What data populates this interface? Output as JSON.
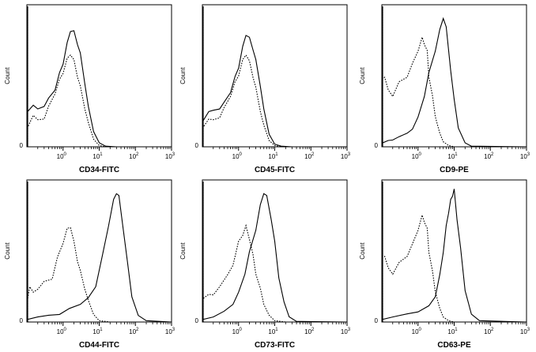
{
  "chart_data": [
    {
      "type": "line",
      "title": "",
      "xlabel": "CD34-FITC",
      "ylabel": "Count",
      "xscale": "log",
      "xticks": [
        "10",
        "10",
        "10",
        "10"
      ],
      "xtick_exponents": [
        "0",
        "1",
        "2",
        "3"
      ],
      "ytick": "0",
      "xlim": [
        0.1,
        1000
      ],
      "ylim": [
        0,
        100
      ],
      "series": [
        {
          "style": "solid",
          "x": [
            0.1,
            0.15,
            0.2,
            0.3,
            0.4,
            0.6,
            0.8,
            1.0,
            1.3,
            1.6,
            2.0,
            2.5,
            3.0,
            4.0,
            5.0,
            7.0,
            10,
            15,
            30,
            1000
          ],
          "y": [
            27,
            33,
            28,
            32,
            36,
            45,
            55,
            65,
            78,
            90,
            87,
            80,
            70,
            50,
            30,
            12,
            3,
            0.5,
            0,
            0
          ]
        },
        {
          "style": "dotted",
          "x": [
            0.1,
            0.15,
            0.2,
            0.3,
            0.4,
            0.6,
            0.8,
            1.0,
            1.3,
            1.6,
            2.0,
            2.5,
            3.0,
            4.0,
            5.0,
            7.0,
            10,
            15,
            30,
            1000
          ],
          "y": [
            15,
            25,
            20,
            22,
            30,
            42,
            50,
            58,
            66,
            72,
            65,
            55,
            45,
            30,
            18,
            6,
            1,
            0,
            0,
            0
          ]
        }
      ]
    },
    {
      "type": "line",
      "title": "",
      "xlabel": "CD45-FITC",
      "ylabel": "Count",
      "xscale": "log",
      "xticks": [
        "10",
        "10",
        "10",
        "10"
      ],
      "xtick_exponents": [
        "0",
        "1",
        "2",
        "3"
      ],
      "ytick": "0",
      "xlim": [
        0.1,
        1000
      ],
      "ylim": [
        0,
        100
      ],
      "series": [
        {
          "style": "solid",
          "x": [
            0.1,
            0.15,
            0.2,
            0.3,
            0.4,
            0.6,
            0.8,
            1.0,
            1.3,
            1.6,
            2.0,
            2.5,
            3.0,
            4.0,
            5.0,
            7.0,
            10,
            15,
            30,
            1000
          ],
          "y": [
            20,
            28,
            27,
            30,
            33,
            43,
            52,
            62,
            75,
            87,
            82,
            76,
            65,
            48,
            28,
            10,
            2,
            0.5,
            0,
            0
          ]
        },
        {
          "style": "dotted",
          "x": [
            0.1,
            0.15,
            0.2,
            0.3,
            0.4,
            0.6,
            0.8,
            1.0,
            1.3,
            1.6,
            2.0,
            2.5,
            3.0,
            4.0,
            5.0,
            7.0,
            10,
            15,
            30,
            1000
          ],
          "y": [
            15,
            22,
            20,
            23,
            29,
            40,
            48,
            56,
            65,
            72,
            64,
            55,
            44,
            28,
            16,
            5,
            1,
            0,
            0,
            0
          ]
        }
      ]
    },
    {
      "type": "line",
      "title": "",
      "xlabel": "CD9-PE",
      "ylabel": "Count",
      "xscale": "log",
      "xticks": [
        "10",
        "10",
        "10",
        "10"
      ],
      "xtick_exponents": [
        "0",
        "1",
        "2",
        "3"
      ],
      "ytick": "0",
      "xlim": [
        0.1,
        1000
      ],
      "ylim": [
        0,
        100
      ],
      "series": [
        {
          "style": "solid",
          "x": [
            0.1,
            0.15,
            0.2,
            0.3,
            0.5,
            0.7,
            1.0,
            1.5,
            2.0,
            3.0,
            4.0,
            5.0,
            6.0,
            8.0,
            10,
            13,
            20,
            30,
            1000
          ],
          "y": [
            3,
            5,
            5,
            8,
            10,
            14,
            22,
            40,
            55,
            75,
            88,
            100,
            90,
            60,
            35,
            15,
            3,
            0.5,
            0
          ]
        },
        {
          "style": "dotted",
          "x": [
            0.1,
            0.12,
            0.15,
            0.2,
            0.3,
            0.5,
            0.7,
            1.0,
            1.3,
            1.5,
            1.8,
            2.0,
            2.5,
            3.0,
            4.0,
            5.0,
            7.0,
            10,
            20,
            1000
          ],
          "y": [
            52,
            55,
            42,
            40,
            48,
            55,
            62,
            75,
            82,
            80,
            72,
            55,
            38,
            24,
            10,
            4,
            1,
            0,
            0,
            0
          ]
        }
      ]
    },
    {
      "type": "line",
      "title": "",
      "xlabel": "CD44-FITC",
      "ylabel": "Count",
      "xscale": "log",
      "xticks": [
        "10",
        "10",
        "10",
        "10"
      ],
      "xtick_exponents": [
        "0",
        "1",
        "2",
        "3"
      ],
      "ytick": "0",
      "xlim": [
        0.1,
        1000
      ],
      "ylim": [
        0,
        100
      ],
      "series": [
        {
          "style": "solid",
          "x": [
            0.1,
            0.2,
            0.4,
            0.8,
            1.5,
            3.0,
            5.0,
            8.0,
            12,
            18,
            25,
            30,
            35,
            45,
            60,
            80,
            120,
            200,
            1000
          ],
          "y": [
            2,
            4,
            5,
            6,
            10,
            14,
            18,
            28,
            48,
            75,
            92,
            100,
            95,
            75,
            45,
            20,
            5,
            1,
            0
          ]
        },
        {
          "style": "dotted",
          "x": [
            0.1,
            0.12,
            0.15,
            0.2,
            0.3,
            0.5,
            0.7,
            1.0,
            1.3,
            1.6,
            2.0,
            2.5,
            3.0,
            4.0,
            5.0,
            7.0,
            10,
            20,
            1000
          ],
          "y": [
            18,
            28,
            22,
            26,
            30,
            34,
            48,
            62,
            70,
            74,
            60,
            48,
            38,
            26,
            16,
            6,
            1,
            0,
            0
          ]
        }
      ]
    },
    {
      "type": "line",
      "title": "",
      "xlabel": "CD73-FITC",
      "ylabel": "Count",
      "xscale": "log",
      "xticks": [
        "10",
        "10",
        "10",
        "10"
      ],
      "xtick_exponents": [
        "0",
        "1",
        "2",
        "3"
      ],
      "ytick": "0",
      "xlim": [
        0.1,
        1000
      ],
      "ylim": [
        0,
        100
      ],
      "series": [
        {
          "style": "solid",
          "x": [
            0.1,
            0.2,
            0.4,
            0.7,
            1.0,
            1.5,
            2.0,
            3.0,
            4.0,
            5.0,
            6.0,
            8.0,
            10,
            13,
            18,
            25,
            40,
            1000
          ],
          "y": [
            2,
            4,
            8,
            14,
            22,
            38,
            52,
            72,
            88,
            100,
            95,
            80,
            60,
            35,
            15,
            4,
            0.5,
            0
          ]
        },
        {
          "style": "dotted",
          "x": [
            0.1,
            0.15,
            0.2,
            0.3,
            0.5,
            0.7,
            1.0,
            1.3,
            1.6,
            2.0,
            2.5,
            3.0,
            4.0,
            5.0,
            7.0,
            10,
            20,
            1000
          ],
          "y": [
            18,
            22,
            20,
            28,
            35,
            45,
            60,
            68,
            72,
            65,
            50,
            38,
            25,
            14,
            5,
            1,
            0,
            0
          ]
        }
      ]
    },
    {
      "type": "line",
      "title": "",
      "xlabel": "CD63-PE",
      "ylabel": "Count",
      "xscale": "log",
      "xticks": [
        "10",
        "10",
        "10",
        "10"
      ],
      "xtick_exponents": [
        "0",
        "1",
        "2",
        "3"
      ],
      "ytick": "0",
      "xlim": [
        0.1,
        1000
      ],
      "ylim": [
        0,
        100
      ],
      "series": [
        {
          "style": "solid",
          "x": [
            0.1,
            0.2,
            0.5,
            1.0,
            2.0,
            3.0,
            4.0,
            5.0,
            6.0,
            7.0,
            8.0,
            9.0,
            10,
            12,
            15,
            20,
            30,
            50,
            1000
          ],
          "y": [
            2,
            4,
            6,
            8,
            12,
            20,
            35,
            55,
            72,
            85,
            92,
            98,
            100,
            80,
            55,
            25,
            6,
            1,
            0
          ]
        },
        {
          "style": "dotted",
          "x": [
            0.1,
            0.12,
            0.15,
            0.2,
            0.3,
            0.5,
            0.7,
            1.0,
            1.3,
            1.5,
            1.8,
            2.0,
            2.5,
            3.0,
            4.0,
            5.0,
            7.0,
            10,
            20,
            1000
          ],
          "y": [
            50,
            52,
            40,
            38,
            44,
            52,
            58,
            72,
            80,
            78,
            70,
            55,
            38,
            24,
            10,
            4,
            1,
            0,
            0,
            0
          ]
        }
      ]
    }
  ]
}
